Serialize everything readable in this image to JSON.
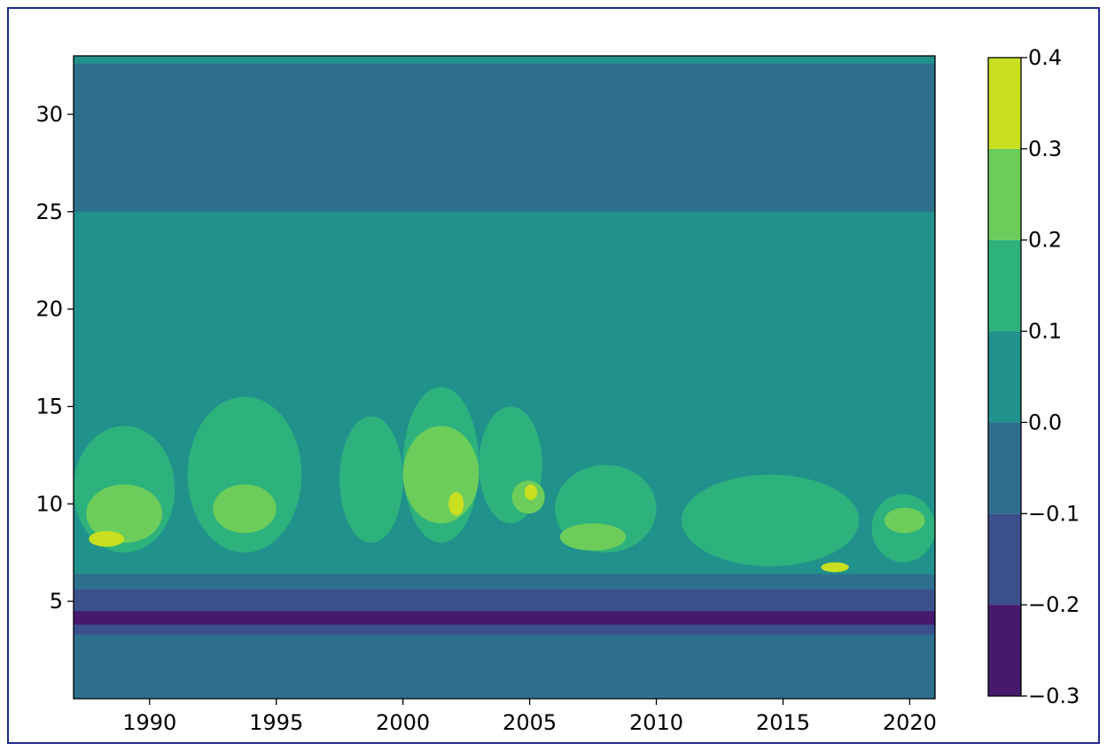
{
  "chart_data": {
    "type": "heatmap",
    "style": "filled-contour",
    "title": "",
    "xlabel": "",
    "ylabel": "",
    "xlim": [
      1987,
      2021
    ],
    "ylim": [
      0,
      33
    ],
    "x_ticks": [
      1990,
      1995,
      2000,
      2005,
      2010,
      2015,
      2020
    ],
    "x_tick_labels": [
      "1990",
      "1995",
      "2000",
      "2005",
      "2010",
      "2015",
      "2020"
    ],
    "y_ticks": [
      5,
      10,
      15,
      20,
      25,
      30
    ],
    "y_tick_labels": [
      "5",
      "10",
      "15",
      "20",
      "25",
      "30"
    ],
    "colorbar": {
      "levels": [
        -0.3,
        -0.2,
        -0.1,
        0.0,
        0.1,
        0.2,
        0.3,
        0.4
      ],
      "tick_labels": [
        "−0.3",
        "−0.2",
        "−0.1",
        "0.0",
        "0.1",
        "0.2",
        "0.3",
        "0.4"
      ],
      "colors": [
        "#46186e",
        "#3b4f8c",
        "#2e6f8e",
        "#21918c",
        "#2db27d",
        "#6ccd5a",
        "#c8e020"
      ]
    },
    "background_band": {
      "value_range": [
        0.0,
        0.1
      ],
      "color": "#21918c"
    },
    "bands": [
      {
        "y_range": [
          0,
          3.3
        ],
        "value_range": [
          -0.1,
          0.0
        ]
      },
      {
        "y_range": [
          3.3,
          3.8
        ],
        "value_range": [
          -0.2,
          -0.1
        ]
      },
      {
        "y_range": [
          3.8,
          4.5
        ],
        "value_range": [
          -0.3,
          -0.2
        ]
      },
      {
        "y_range": [
          4.5,
          5.6
        ],
        "value_range": [
          -0.2,
          -0.1
        ]
      },
      {
        "y_range": [
          5.6,
          6.4
        ],
        "value_range": [
          -0.1,
          0.0
        ]
      },
      {
        "y_range": [
          6.4,
          7.2
        ],
        "value_range": [
          0.0,
          0.1
        ]
      },
      {
        "y_range": [
          25,
          33
        ],
        "value_range": [
          -0.1,
          0.0
        ]
      },
      {
        "y_range": [
          32.6,
          33
        ],
        "value_range": [
          0.0,
          0.1
        ]
      }
    ],
    "regions": [
      {
        "x": [
          1987,
          1991
        ],
        "y": [
          7.5,
          14
        ],
        "value_range": [
          0.1,
          0.2
        ]
      },
      {
        "x": [
          1987.5,
          1990.5
        ],
        "y": [
          8,
          11
        ],
        "value_range": [
          0.2,
          0.3
        ]
      },
      {
        "x": [
          1987.6,
          1989
        ],
        "y": [
          7.8,
          8.6
        ],
        "value_range": [
          0.3,
          0.4
        ]
      },
      {
        "x": [
          1991.5,
          1996
        ],
        "y": [
          7.5,
          15.5
        ],
        "value_range": [
          0.1,
          0.2
        ]
      },
      {
        "x": [
          1992.5,
          1995
        ],
        "y": [
          8.5,
          11
        ],
        "value_range": [
          0.2,
          0.3
        ]
      },
      {
        "x": [
          1997.5,
          2000
        ],
        "y": [
          8,
          14.5
        ],
        "value_range": [
          0.1,
          0.2
        ]
      },
      {
        "x": [
          2000,
          2003
        ],
        "y": [
          8,
          16
        ],
        "value_range": [
          0.1,
          0.2
        ]
      },
      {
        "x": [
          2000,
          2003
        ],
        "y": [
          9,
          14
        ],
        "value_range": [
          0.2,
          0.3
        ]
      },
      {
        "x": [
          2001.8,
          2002.4
        ],
        "y": [
          9.4,
          10.6
        ],
        "value_range": [
          0.3,
          0.4
        ]
      },
      {
        "x": [
          2003,
          2005.5
        ],
        "y": [
          9,
          15
        ],
        "value_range": [
          0.1,
          0.2
        ]
      },
      {
        "x": [
          2004.3,
          2005.6
        ],
        "y": [
          9.5,
          11.2
        ],
        "value_range": [
          0.2,
          0.3
        ]
      },
      {
        "x": [
          2004.8,
          2005.3
        ],
        "y": [
          10.2,
          11
        ],
        "value_range": [
          0.3,
          0.4
        ]
      },
      {
        "x": [
          2006,
          2010
        ],
        "y": [
          7.5,
          12
        ],
        "value_range": [
          0.1,
          0.2
        ]
      },
      {
        "x": [
          2006.2,
          2008.8
        ],
        "y": [
          7.6,
          9
        ],
        "value_range": [
          0.2,
          0.3
        ]
      },
      {
        "x": [
          2011,
          2018
        ],
        "y": [
          6.8,
          11.5
        ],
        "value_range": [
          0.1,
          0.2
        ]
      },
      {
        "x": [
          2016.5,
          2017.6
        ],
        "y": [
          6.5,
          7
        ],
        "value_range": [
          0.3,
          0.4
        ]
      },
      {
        "x": [
          2018.5,
          2021
        ],
        "y": [
          7,
          10.5
        ],
        "value_range": [
          0.1,
          0.2
        ]
      },
      {
        "x": [
          2019,
          2020.6
        ],
        "y": [
          8.5,
          9.8
        ],
        "value_range": [
          0.2,
          0.3
        ]
      }
    ]
  }
}
